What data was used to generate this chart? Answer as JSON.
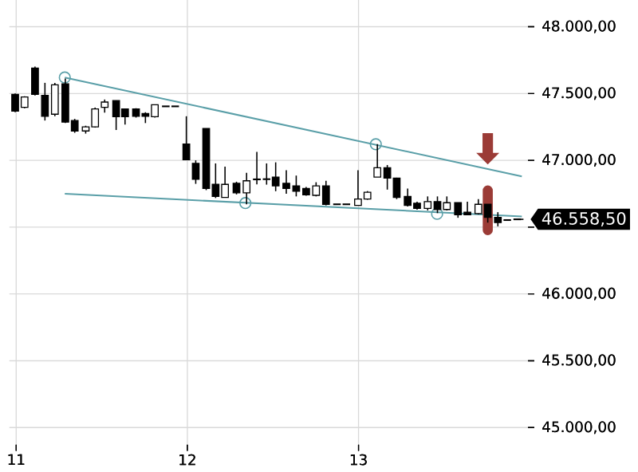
{
  "chart_data": {
    "type": "candlestick",
    "color": "#000000",
    "x": [
      10.994,
      11.049,
      11.11,
      11.168,
      11.226,
      11.287,
      11.342,
      11.406,
      11.461,
      11.517,
      11.584,
      11.636,
      11.7,
      11.755,
      11.81,
      11.874,
      11.929,
      11.994,
      12.049,
      12.11,
      12.165,
      12.22,
      12.287,
      12.346,
      12.406,
      12.463,
      12.516,
      12.578,
      12.636,
      12.694,
      12.752,
      12.81,
      12.874,
      12.929,
      12.997,
      13.052,
      13.11,
      13.168,
      13.223,
      13.287,
      13.342,
      13.404,
      13.461,
      13.516,
      13.581,
      13.636,
      13.7,
      13.755,
      13.814,
      13.869,
      13.927
    ],
    "ohlc": [
      [
        47494,
        47500,
        47360,
        47368
      ],
      [
        47397,
        47480,
        47390,
        47474
      ],
      [
        47690,
        47702,
        47486,
        47494
      ],
      [
        47486,
        47580,
        47298,
        47330
      ],
      [
        47345,
        47580,
        47330,
        47565
      ],
      [
        47573,
        47612,
        47279,
        47286
      ],
      [
        47298,
        47310,
        47206,
        47220
      ],
      [
        47220,
        47259,
        47200,
        47251
      ],
      [
        47251,
        47395,
        47245,
        47385
      ],
      [
        47397,
        47455,
        47357,
        47436
      ],
      [
        47447,
        47447,
        47227,
        47326
      ],
      [
        47385,
        47385,
        47267,
        47326
      ],
      [
        47385,
        47390,
        47320,
        47330
      ],
      [
        47350,
        47360,
        47279,
        47330
      ],
      [
        47326,
        47416,
        47320,
        47416
      ],
      [
        47404,
        47404,
        47404,
        47404
      ],
      [
        47404,
        47404,
        47404,
        47404
      ],
      [
        47122,
        47330,
        47004,
        47004
      ],
      [
        46977,
        47000,
        46824,
        46859
      ],
      [
        47239,
        47239,
        46777,
        46789
      ],
      [
        46820,
        46977,
        46718,
        46730
      ],
      [
        46722,
        46953,
        46722,
        46820
      ],
      [
        46828,
        46840,
        46745,
        46757
      ],
      [
        46757,
        46906,
        46671,
        46847
      ],
      [
        46860,
        47063,
        46820,
        46855
      ],
      [
        46859,
        46977,
        46818,
        46859
      ],
      [
        46875,
        46985,
        46769,
        46809
      ],
      [
        46828,
        46926,
        46750,
        46789
      ],
      [
        46808,
        46886,
        46730,
        46769
      ],
      [
        46789,
        46800,
        46735,
        46742
      ],
      [
        46738,
        46836,
        46730,
        46809
      ],
      [
        46809,
        46847,
        46663,
        46671
      ],
      [
        46671,
        46671,
        46671,
        46671
      ],
      [
        46671,
        46671,
        46671,
        46671
      ],
      [
        46663,
        46926,
        46663,
        46710
      ],
      [
        46710,
        46770,
        46705,
        46761
      ],
      [
        46875,
        47122,
        46875,
        46945
      ],
      [
        46945,
        46965,
        46781,
        46867
      ],
      [
        46867,
        46870,
        46710,
        46722
      ],
      [
        46730,
        46788,
        46655,
        46663
      ],
      [
        46679,
        46690,
        46630,
        46640
      ],
      [
        46640,
        46730,
        46625,
        46691
      ],
      [
        46691,
        46730,
        46605,
        46632
      ],
      [
        46632,
        46730,
        46625,
        46683
      ],
      [
        46683,
        46683,
        46570,
        46593
      ],
      [
        46612,
        46690,
        46590,
        46593
      ],
      [
        46601,
        46710,
        46595,
        46671
      ],
      [
        46671,
        46671,
        46534,
        46573
      ],
      [
        46573,
        46612,
        46506,
        46534
      ],
      [
        46553,
        46553,
        46553,
        46553
      ],
      [
        46558.5,
        46558.5,
        46558.5,
        46558.5
      ]
    ],
    "series": [
      {
        "type": "line",
        "color": "#5a9fa8",
        "x": [
          11.284,
          13.954
        ],
        "values": [
          47620,
          46880
        ]
      },
      {
        "type": "line",
        "color": "#5a9fa8",
        "x": [
          11.284,
          13.954
        ],
        "values": [
          46750,
          46580
        ]
      },
      {
        "type": "scatter",
        "marker": "circle",
        "color": "#5a9fa8",
        "x": [
          11.284,
          12.339,
          13.101,
          13.459
        ],
        "values": [
          47620,
          46680,
          47120,
          46600
        ]
      }
    ],
    "xlim": [
      10.96,
      13.99
    ],
    "ylim": [
      44872,
      48200
    ],
    "xticks": [
      11,
      12,
      13
    ],
    "yticks": [
      {
        "value": 45000,
        "label": "45.000,00"
      },
      {
        "value": 45500,
        "label": "45.500,00"
      },
      {
        "value": 46000,
        "label": "46.000,00"
      },
      {
        "value": 46500,
        "label": null
      },
      {
        "value": 47000,
        "label": "47.000,00"
      },
      {
        "value": 47500,
        "label": "47.500,00"
      },
      {
        "value": 48000,
        "label": "48.000,00"
      }
    ],
    "grid": true,
    "ref_lines": [
      {
        "axis": "y",
        "value": 46558.5,
        "label": "46.558,50",
        "color": "#000000"
      }
    ]
  }
}
